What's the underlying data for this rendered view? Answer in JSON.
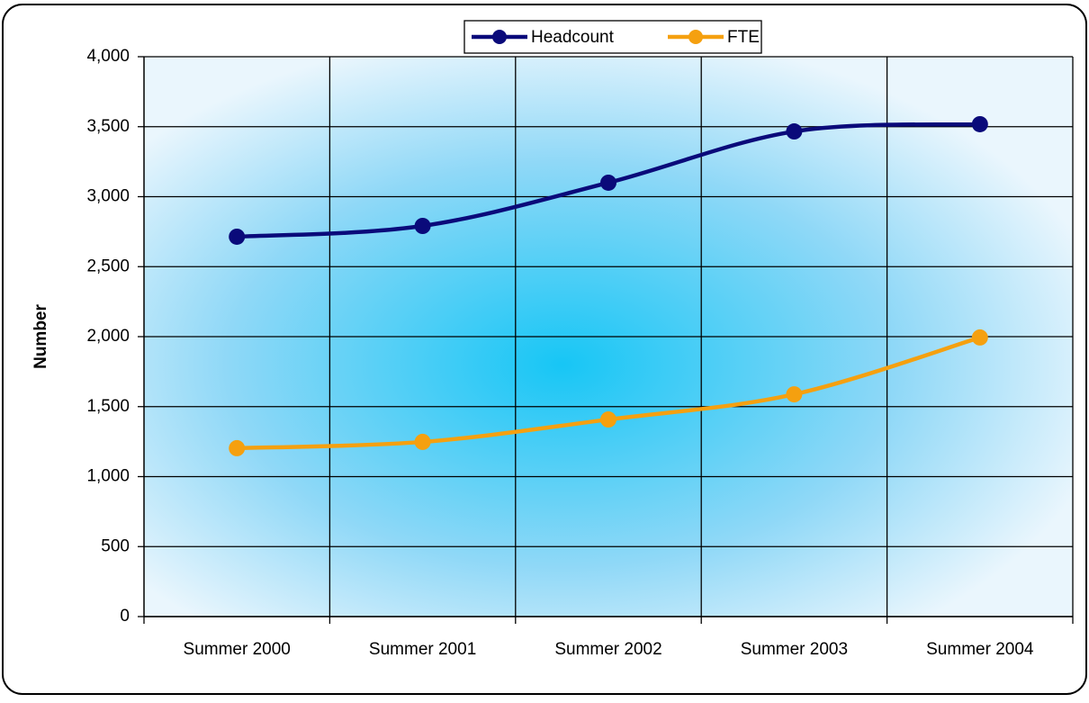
{
  "chart_data": {
    "type": "line",
    "y_label": "Number",
    "categories": [
      "Summer 2000",
      "Summer 2001",
      "Summer 2002",
      "Summer 2003",
      "Summer 2004"
    ],
    "series": [
      {
        "name": "Headcount",
        "color": "#0a0a7a",
        "values": [
          2714,
          2791,
          3100,
          3466,
          3518
        ]
      },
      {
        "name": "FTE",
        "color": "#f5a00f",
        "values": [
          1203,
          1248,
          1408,
          1588,
          1994
        ]
      }
    ],
    "ylim": [
      0,
      4000
    ],
    "yticks": [
      0,
      500,
      {
        "value": 1000,
        "label": "1,000"
      },
      {
        "value": 1500,
        "label": "1,500"
      },
      {
        "value": 2000,
        "label": "2,000"
      },
      {
        "value": 2500,
        "label": "2,500"
      },
      {
        "value": 3000,
        "label": "3,000"
      },
      {
        "value": 3500,
        "label": "3,500"
      },
      {
        "value": 4000,
        "label": "4,000"
      }
    ],
    "grid": true,
    "legend": "top"
  }
}
